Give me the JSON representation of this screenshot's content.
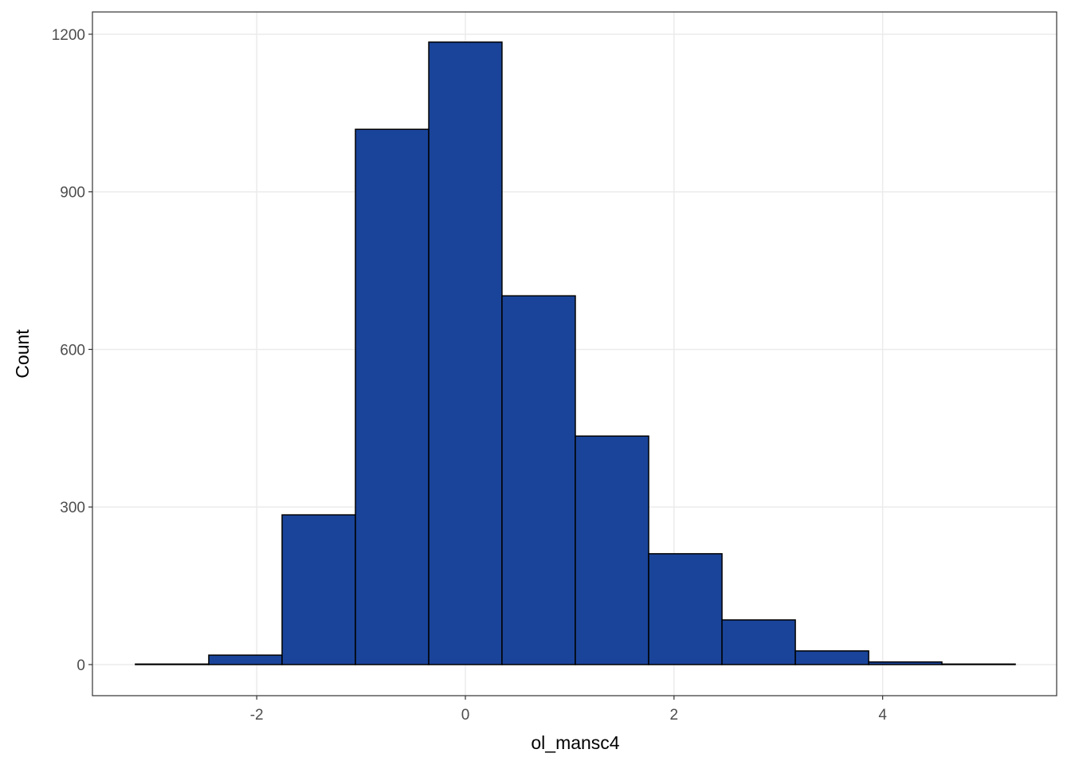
{
  "chart_data": {
    "type": "histogram",
    "x_label": "ol_mansc4",
    "y_label": "Count",
    "bins": [
      -3.163,
      -2.46,
      -1.757,
      -1.054,
      -0.351,
      0.351,
      1.054,
      1.757,
      2.46,
      3.163,
      3.866,
      4.568,
      5.271
    ],
    "values": [
      1,
      18,
      285,
      1019,
      1185,
      702,
      435,
      211,
      85,
      26,
      5,
      1
    ],
    "color": "#1a4499",
    "edge_color": "#000000",
    "xlim": [
      -3.575,
      5.668
    ],
    "ylim": [
      -59.2,
      1242.4
    ],
    "xticks": [
      -2,
      0,
      2,
      4
    ],
    "yticks": [
      0,
      300,
      600,
      900,
      1200
    ],
    "grid": true
  }
}
